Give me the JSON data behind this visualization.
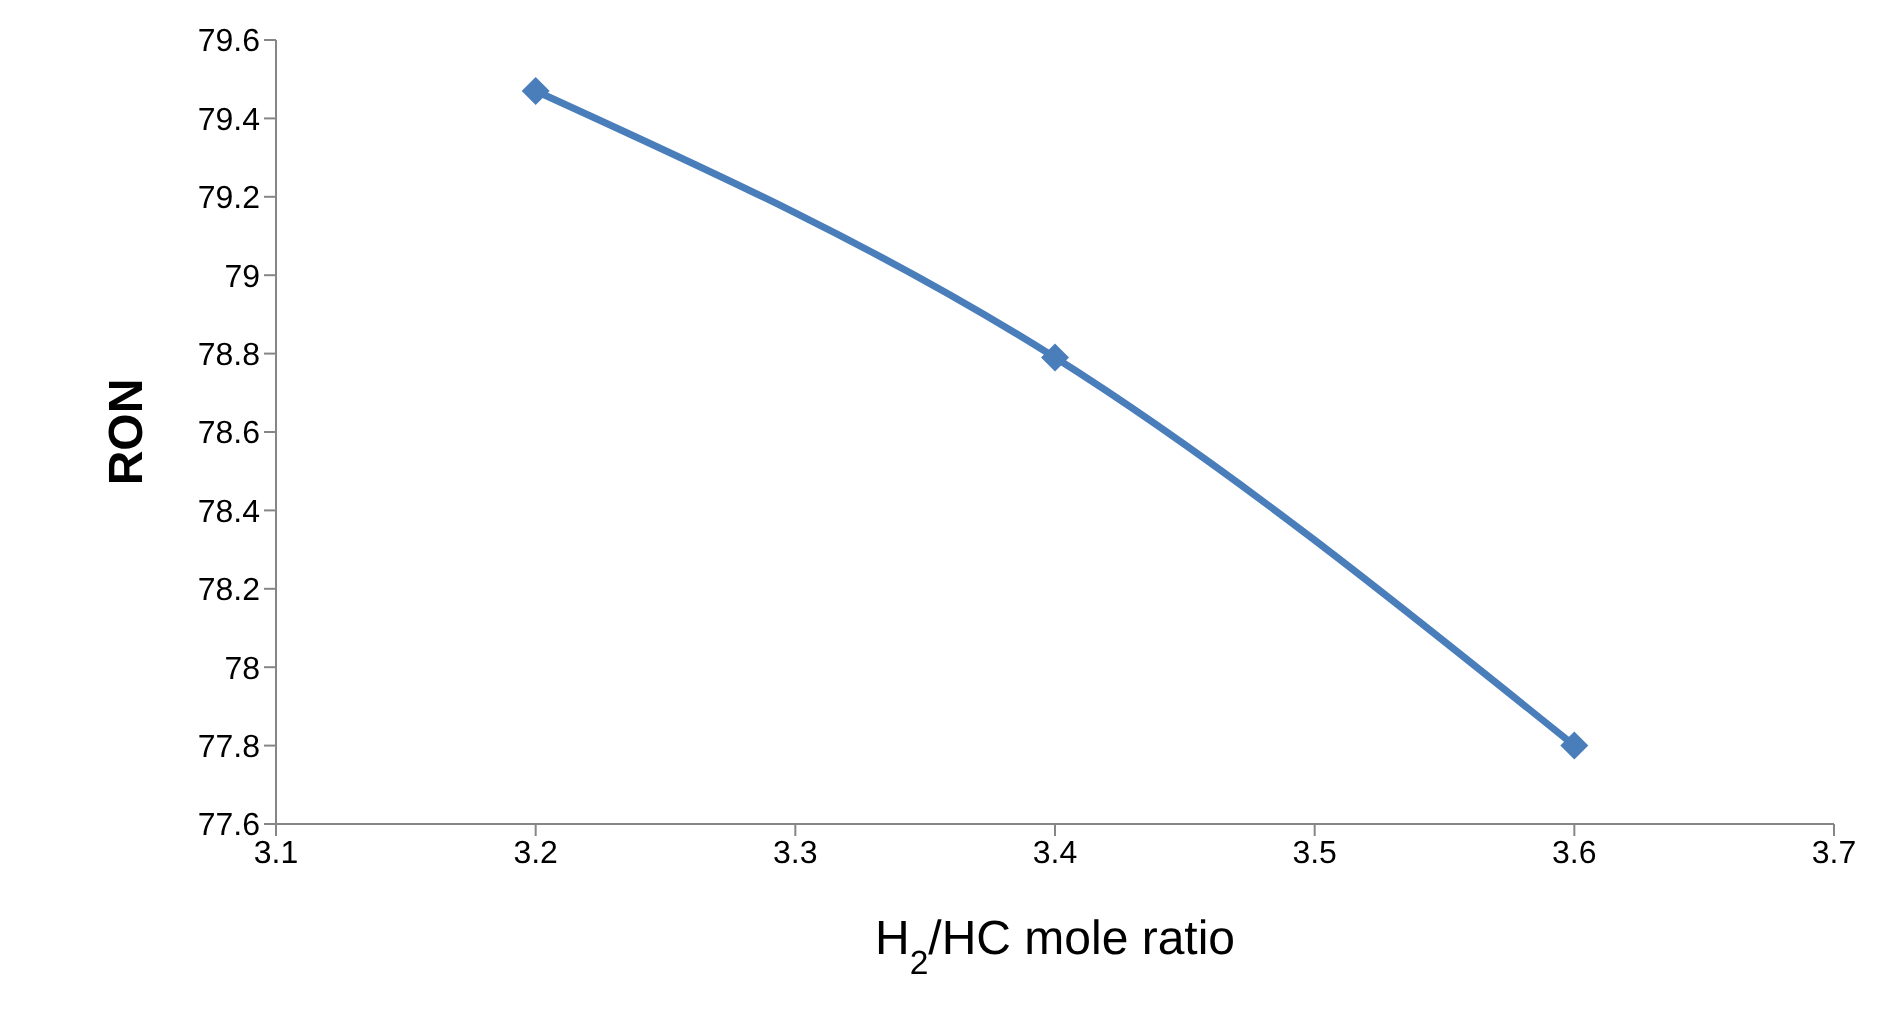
{
  "chart_data": {
    "type": "line",
    "xlabel": "H$_{2}$/HC mole ratio",
    "ylabel": "RON",
    "x": [
      3.2,
      3.4,
      3.6
    ],
    "series": [
      {
        "color": "#4a7ebb",
        "values": [
          79.47,
          78.79,
          77.8
        ]
      }
    ],
    "xlim": [
      3.1,
      3.7
    ],
    "xticks": [
      3.1,
      3.2,
      3.3,
      3.4,
      3.5,
      3.6,
      3.7
    ],
    "ylim": [
      77.6,
      79.6
    ],
    "yticks": [
      77.6,
      77.8,
      78,
      78.2,
      78.4,
      78.6,
      78.8,
      79,
      79.2,
      79.4,
      79.6
    ],
    "grid": false,
    "legend": false,
    "marker": "diamond",
    "line_style": "solid"
  }
}
